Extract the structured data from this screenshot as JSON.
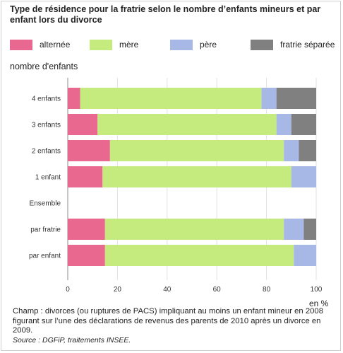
{
  "chart_data": {
    "type": "bar",
    "orientation": "horizontal",
    "stacked": true,
    "title": "Type de résidence pour la fratrie selon le nombre d’enfants mineurs et par enfant lors du divorce",
    "ylabel": "nombre d'enfants",
    "xlabel": "en %",
    "xlim": [
      0,
      100
    ],
    "xticks": [
      "0",
      "20",
      "40",
      "60",
      "80",
      "100"
    ],
    "xtick_values": [
      0,
      20,
      40,
      60,
      80,
      100
    ],
    "grid": "vertical",
    "legend_position": "top",
    "categories": [
      "4 enfants",
      "3 enfants",
      "2 enfants",
      "1 enfant",
      "Ensemble",
      "par fratrie",
      "par enfant"
    ],
    "series": [
      {
        "name": "alternée",
        "color": "#e8688f",
        "values": [
          5,
          12,
          17,
          14,
          null,
          15,
          15
        ]
      },
      {
        "name": "mère",
        "color": "#c5ea7e",
        "values": [
          73,
          72,
          70,
          76,
          null,
          72,
          76
        ]
      },
      {
        "name": "père",
        "color": "#a7b8e6",
        "values": [
          6,
          6,
          6,
          10,
          null,
          8,
          9
        ]
      },
      {
        "name": "fratrie séparée",
        "color": "#808080",
        "values": [
          16,
          10,
          7,
          0,
          null,
          5,
          0
        ]
      }
    ]
  },
  "footer": {
    "note": "Champ : divorces (ou ruptures de PACS) impliquant au moins un enfant mineur en 2008 figurant sur l’une des déclarations de revenus des parents de 2010 après un divorce en 2009.",
    "source": "Source : DGFiP, traitements INSEE."
  }
}
